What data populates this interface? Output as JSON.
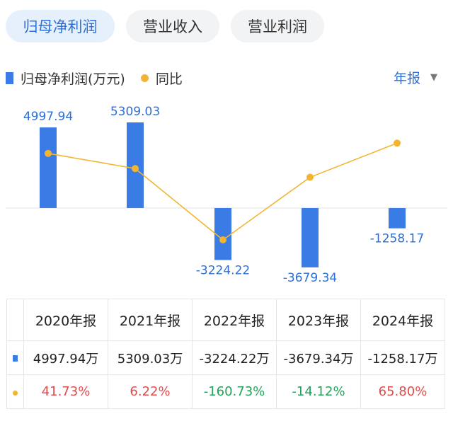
{
  "tabs": [
    "归母净利润",
    "营业收入",
    "营业利润"
  ],
  "legend": {
    "bar_label": "归母净利润(万元)",
    "line_label": "同比"
  },
  "period": {
    "label": "年报",
    "caret": "▼"
  },
  "colors": {
    "bar": "#3b7be6",
    "line": "#f3b531",
    "accent": "#2e6fd6",
    "positive": "#e24b4b",
    "negative": "#22a35a"
  },
  "chart_data": {
    "type": "bar",
    "categories": [
      "2020年报",
      "2021年报",
      "2022年报",
      "2023年报",
      "2024年报"
    ],
    "series": [
      {
        "name": "归母净利润(万元)",
        "type": "bar",
        "values": [
          4997.94,
          5309.03,
          -3224.22,
          -3679.34,
          -1258.17
        ],
        "labels": [
          "4997.94",
          "5309.03",
          "-3224.22",
          "-3679.34",
          "-1258.17"
        ]
      },
      {
        "name": "同比",
        "type": "line",
        "values": [
          41.73,
          6.22,
          -160.73,
          -14.12,
          65.8
        ]
      }
    ]
  },
  "table": {
    "headers": [
      "2020年报",
      "2021年报",
      "2022年报",
      "2023年报",
      "2024年报"
    ],
    "profit_row": [
      "4997.94万",
      "5309.03万",
      "-3224.22万",
      "-3679.34万",
      "-1258.17万"
    ],
    "yoy_row": [
      "41.73%",
      "6.22%",
      "-160.73%",
      "-14.12%",
      "65.80%"
    ]
  }
}
